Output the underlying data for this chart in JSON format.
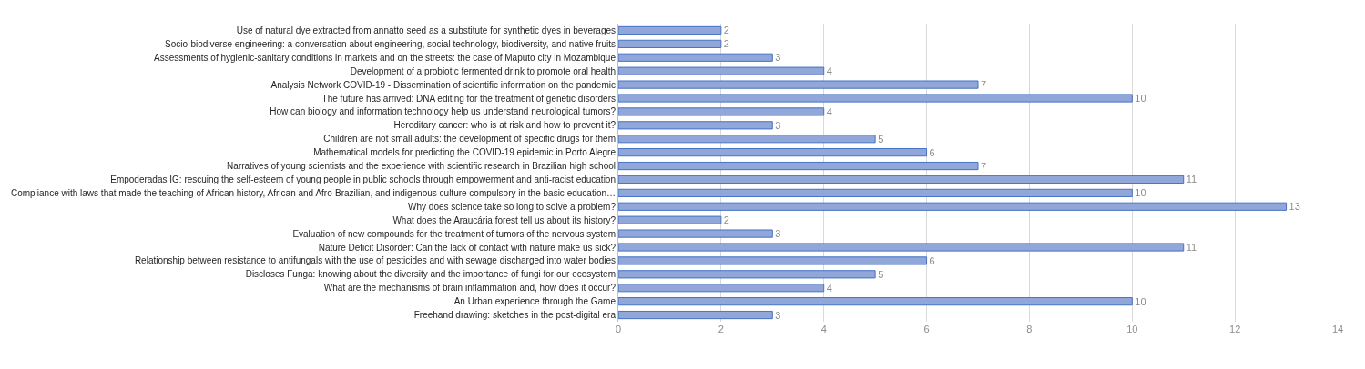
{
  "chart_data": {
    "type": "bar",
    "orientation": "horizontal",
    "categories": [
      "Use of natural dye extracted from annatto seed as a substitute for synthetic dyes in beverages",
      "Socio-biodiverse engineering: a conversation about engineering, social technology, biodiversity, and native fruits",
      "Assessments of hygienic-sanitary conditions in markets and on the streets: the case of Maputo city in Mozambique",
      "Development of a probiotic fermented drink to promote oral health",
      "Analysis Network COVID-19 - Dissemination of scientific information on the pandemic",
      "The future has arrived: DNA editing for the treatment of genetic disorders",
      "How can biology and information technology help us understand neurological tumors?",
      "Hereditary cancer: who is at risk and how to prevent it?",
      "Children are not small adults: the development of specific drugs for them",
      "Mathematical models for predicting the COVID-19 epidemic in Porto Alegre",
      "Narratives of young scientists and the experience with scientific research in Brazilian high school",
      "Empoderadas IG: rescuing the self-esteem of young people in public schools through empowerment and anti-racist education",
      "Compliance with laws that made the teaching of African history, African and Afro-Brazilian, and indigenous culture compulsory in the basic education…",
      "Why does science take so long to solve a problem?",
      "What does the Araucária forest tell us about its history?",
      "Evaluation of new compounds for the treatment of tumors of the nervous system",
      "Nature Deficit Disorder: Can the lack of contact with nature make us sick?",
      "Relationship between resistance to antifungals with the use of pesticides and with sewage discharged into water bodies",
      "Discloses Funga: knowing about the diversity and the importance of fungi for our ecosystem",
      "What are the mechanisms of brain inflammation and, how does it occur?",
      "An Urban experience through the Game",
      "Freehand drawing: sketches in the post-digital era"
    ],
    "values": [
      2,
      2,
      3,
      4,
      7,
      10,
      4,
      3,
      5,
      6,
      7,
      11,
      10,
      13,
      2,
      3,
      11,
      6,
      5,
      4,
      10,
      3
    ],
    "color": "#91a7da",
    "data_labels": true,
    "xlim": [
      0,
      14
    ],
    "xticks": [
      0,
      2,
      4,
      6,
      8,
      10,
      12,
      14
    ],
    "grid": "x"
  }
}
